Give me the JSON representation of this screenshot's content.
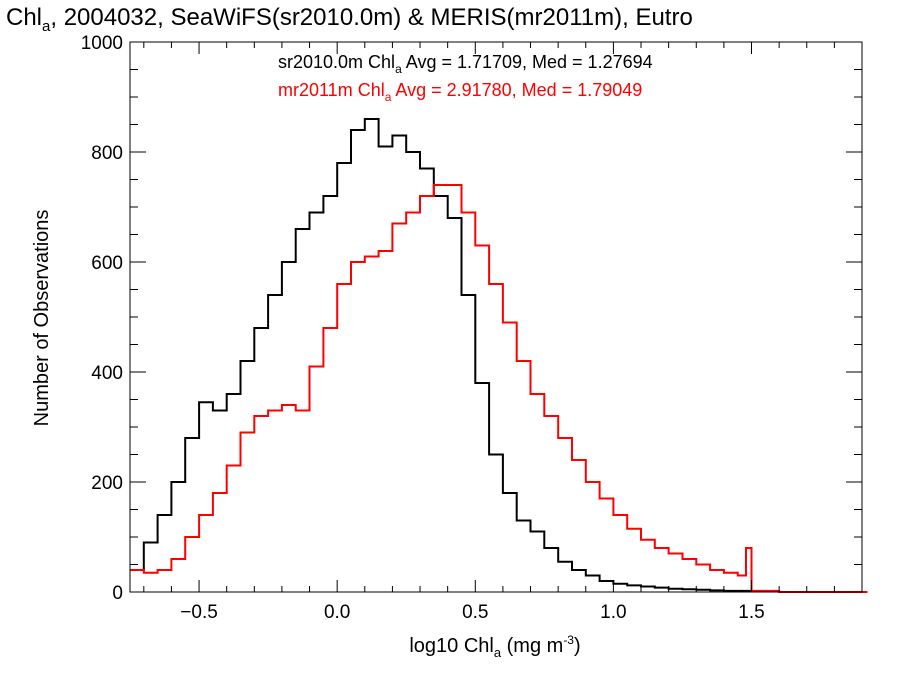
{
  "chart_data": {
    "type": "line",
    "title": {
      "pre": "Chl",
      "sub": "a",
      "post": ", 2004032, SeaWiFS(sr2010.0m) & MERIS(mr2011m), Eutro"
    },
    "xlabel": {
      "pre": "log10 Chl",
      "sub": "a",
      "mid": " (mg m",
      "sup": "-3",
      "post": ")"
    },
    "ylabel": "Number of Observations",
    "xlim": [
      -0.75,
      1.9
    ],
    "ylim": [
      0,
      1000
    ],
    "x_ticks": [
      -0.5,
      0.0,
      0.5,
      1.0,
      1.5
    ],
    "x_tick_labels": [
      "−0.5",
      "0.0",
      "0.5",
      "1.0",
      "1.5"
    ],
    "y_ticks": [
      0,
      200,
      400,
      600,
      800,
      1000
    ],
    "y_tick_labels": [
      "0",
      "200",
      "400",
      "600",
      "800",
      "1000"
    ],
    "grid": false,
    "legend_position": "top",
    "series": [
      {
        "name": "sr2010.0m",
        "color": "#000000",
        "stats": {
          "pre": "sr2010.0m Chl",
          "sub": "a",
          "post": " Avg = 1.71709, Med = 1.27694"
        },
        "x": [
          -0.75,
          -0.7,
          -0.65,
          -0.6,
          -0.55,
          -0.5,
          -0.45,
          -0.4,
          -0.35,
          -0.3,
          -0.25,
          -0.2,
          -0.15,
          -0.1,
          -0.05,
          0.0,
          0.05,
          0.1,
          0.15,
          0.2,
          0.25,
          0.3,
          0.35,
          0.4,
          0.45,
          0.5,
          0.55,
          0.6,
          0.65,
          0.7,
          0.75,
          0.8,
          0.85,
          0.9,
          0.95,
          1.0,
          1.05,
          1.1,
          1.15,
          1.2,
          1.25,
          1.3,
          1.35,
          1.4,
          1.45,
          1.5
        ],
        "y": [
          40,
          90,
          140,
          200,
          280,
          345,
          330,
          360,
          420,
          480,
          540,
          600,
          660,
          690,
          720,
          780,
          840,
          860,
          810,
          830,
          800,
          770,
          720,
          680,
          540,
          380,
          250,
          180,
          130,
          110,
          80,
          55,
          40,
          30,
          20,
          15,
          12,
          10,
          8,
          6,
          5,
          4,
          3,
          2,
          2,
          1
        ]
      },
      {
        "name": "mr2011m",
        "color": "#ff0000",
        "stats": {
          "pre": "mr2011m Chl",
          "sub": "a",
          "post": " Avg = 2.91780, Med = 1.79049"
        },
        "x": [
          -0.75,
          -0.7,
          -0.65,
          -0.6,
          -0.55,
          -0.5,
          -0.45,
          -0.4,
          -0.35,
          -0.3,
          -0.25,
          -0.2,
          -0.15,
          -0.1,
          -0.05,
          0.0,
          0.05,
          0.1,
          0.15,
          0.2,
          0.25,
          0.3,
          0.35,
          0.4,
          0.45,
          0.5,
          0.55,
          0.6,
          0.65,
          0.7,
          0.75,
          0.8,
          0.85,
          0.9,
          0.95,
          1.0,
          1.05,
          1.1,
          1.15,
          1.2,
          1.25,
          1.3,
          1.35,
          1.4,
          1.45,
          1.48,
          1.5,
          1.6,
          1.7,
          1.8,
          1.9
        ],
        "y": [
          40,
          35,
          40,
          60,
          100,
          140,
          180,
          230,
          290,
          320,
          330,
          340,
          330,
          410,
          480,
          560,
          600,
          610,
          620,
          670,
          690,
          720,
          740,
          740,
          690,
          630,
          560,
          490,
          420,
          360,
          320,
          280,
          240,
          200,
          170,
          140,
          115,
          95,
          80,
          70,
          60,
          50,
          40,
          35,
          30,
          80,
          2,
          0,
          0,
          0,
          0
        ]
      }
    ]
  }
}
